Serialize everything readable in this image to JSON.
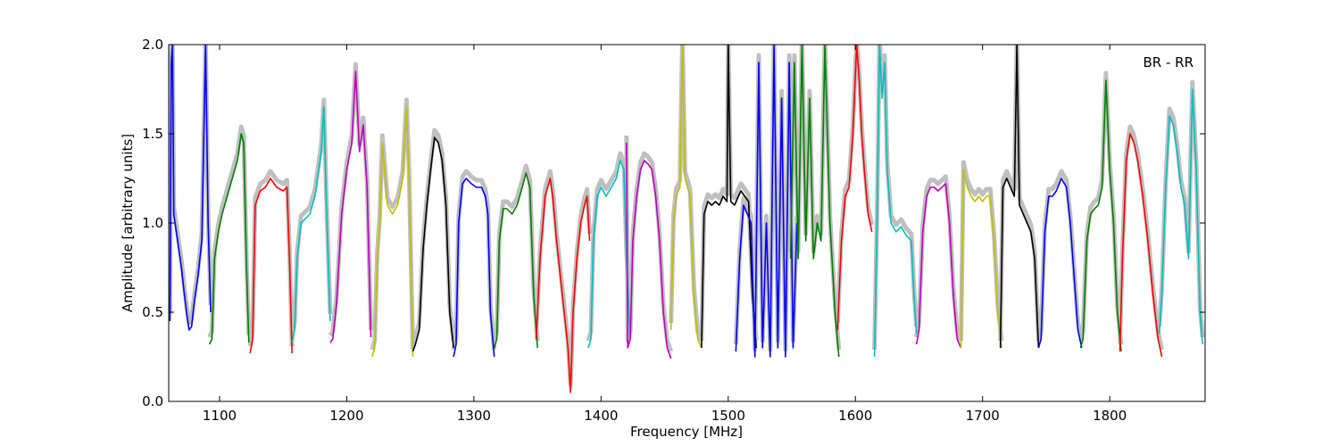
{
  "chart_data": {
    "type": "line",
    "title": "",
    "xlabel": "Frequency [MHz]",
    "ylabel": "Amplitude [arbitrary units]",
    "xlim": [
      1060,
      1875
    ],
    "ylim": [
      0.0,
      2.0
    ],
    "xticks": [
      1100,
      1200,
      1300,
      1400,
      1500,
      1600,
      1700,
      1800
    ],
    "yticks": [
      0.0,
      0.5,
      1.0,
      1.5,
      2.0
    ],
    "xtick_labels": [
      "1100",
      "1200",
      "1300",
      "1400",
      "1500",
      "1600",
      "1700",
      "1800"
    ],
    "ytick_labels": [
      "0.0",
      "0.5",
      "1.0",
      "1.5",
      "2.0"
    ],
    "annotation": "BR - RR",
    "grid": false,
    "background_color": "#bfbfbf",
    "colors": {
      "blue": "#0000ff",
      "green": "#008000",
      "red": "#ff0000",
      "cyan": "#00bfbf",
      "magenta": "#bf00bf",
      "yellow": "#bfbf00",
      "black": "#000000"
    },
    "series": [
      {
        "color": "blue",
        "x": [
          1061,
          1062,
          1063,
          1064,
          1066,
          1068,
          1070,
          1072,
          1074,
          1076,
          1078,
          1080,
          1083,
          1086,
          1089,
          1091,
          1093
        ],
        "y": [
          0.45,
          1.9,
          2.0,
          1.05,
          0.95,
          0.85,
          0.75,
          0.62,
          0.5,
          0.4,
          0.42,
          0.55,
          0.7,
          0.9,
          2.0,
          1.0,
          0.5
        ]
      },
      {
        "color": "green",
        "x": [
          1092,
          1094,
          1096,
          1099,
          1102,
          1106,
          1110,
          1114,
          1117,
          1119,
          1121,
          1123
        ],
        "y": [
          0.32,
          0.35,
          0.8,
          0.95,
          1.05,
          1.15,
          1.25,
          1.35,
          1.5,
          1.45,
          0.8,
          0.33
        ]
      },
      {
        "color": "red",
        "x": [
          1124,
          1126,
          1128,
          1132,
          1136,
          1140,
          1145,
          1150,
          1153,
          1155,
          1157
        ],
        "y": [
          0.27,
          0.35,
          1.1,
          1.18,
          1.2,
          1.25,
          1.2,
          1.18,
          1.2,
          0.8,
          0.27
        ]
      },
      {
        "color": "cyan",
        "x": [
          1157,
          1159,
          1161,
          1164,
          1167,
          1171,
          1175,
          1178,
          1180,
          1182,
          1184,
          1187
        ],
        "y": [
          0.33,
          0.4,
          0.8,
          1.0,
          1.02,
          1.05,
          1.15,
          1.3,
          1.4,
          1.65,
          1.1,
          0.45
        ]
      },
      {
        "color": "magenta",
        "x": [
          1187,
          1189,
          1192,
          1196,
          1200,
          1204,
          1207,
          1210,
          1213,
          1216,
          1219
        ],
        "y": [
          0.33,
          0.35,
          0.55,
          1.05,
          1.3,
          1.45,
          1.85,
          1.4,
          1.55,
          1.2,
          0.36
        ]
      },
      {
        "color": "yellow",
        "x": [
          1220,
          1222,
          1224,
          1226,
          1228,
          1232,
          1236,
          1240,
          1244,
          1247,
          1249,
          1252
        ],
        "y": [
          0.25,
          0.3,
          0.8,
          1.0,
          1.45,
          1.1,
          1.05,
          1.1,
          1.25,
          1.65,
          1.25,
          0.25
        ]
      },
      {
        "color": "black",
        "x": [
          1252,
          1254,
          1257,
          1260,
          1263,
          1266,
          1269,
          1272,
          1275,
          1278,
          1281,
          1284
        ],
        "y": [
          0.28,
          0.32,
          0.4,
          0.85,
          1.1,
          1.3,
          1.48,
          1.45,
          1.35,
          1.1,
          0.5,
          0.3
        ]
      },
      {
        "color": "blue",
        "x": [
          1284,
          1286,
          1288,
          1291,
          1294,
          1298,
          1302,
          1306,
          1309,
          1311,
          1313,
          1316
        ],
        "y": [
          0.25,
          0.32,
          1.0,
          1.22,
          1.25,
          1.22,
          1.2,
          1.2,
          1.15,
          1.05,
          0.5,
          0.25
        ]
      },
      {
        "color": "green",
        "x": [
          1316,
          1318,
          1320,
          1323,
          1326,
          1330,
          1334,
          1338,
          1341,
          1344,
          1347,
          1350
        ],
        "y": [
          0.3,
          0.35,
          0.9,
          1.08,
          1.08,
          1.05,
          1.1,
          1.2,
          1.28,
          1.2,
          0.6,
          0.3
        ]
      },
      {
        "color": "red",
        "x": [
          1349,
          1352,
          1356,
          1360,
          1362,
          1365,
          1368,
          1371,
          1374,
          1376,
          1378,
          1381,
          1384,
          1387,
          1389,
          1391
        ],
        "y": [
          0.35,
          0.8,
          1.15,
          1.25,
          1.15,
          0.9,
          0.7,
          0.5,
          0.3,
          0.05,
          0.5,
          0.8,
          1.0,
          1.1,
          1.15,
          0.9
        ]
      },
      {
        "color": "cyan",
        "x": [
          1390,
          1392,
          1394,
          1397,
          1400,
          1404,
          1408,
          1412,
          1415,
          1418,
          1420,
          1423
        ],
        "y": [
          0.3,
          0.35,
          0.9,
          1.15,
          1.2,
          1.15,
          1.2,
          1.25,
          1.35,
          1.3,
          0.8,
          0.35
        ]
      },
      {
        "color": "magenta",
        "x": [
          1420,
          1421,
          1423,
          1425,
          1428,
          1431,
          1434,
          1437,
          1440,
          1443,
          1446,
          1449,
          1452,
          1455
        ],
        "y": [
          1.45,
          0.3,
          0.35,
          0.9,
          1.15,
          1.3,
          1.35,
          1.33,
          1.3,
          1.15,
          0.9,
          0.5,
          0.3,
          0.24
        ]
      },
      {
        "color": "yellow",
        "x": [
          1455,
          1457,
          1459,
          1462,
          1464,
          1466,
          1468,
          1470,
          1473,
          1476,
          1479
        ],
        "y": [
          0.4,
          1.0,
          1.15,
          1.2,
          2.0,
          1.25,
          1.2,
          1.15,
          0.6,
          0.35,
          0.3
        ]
      },
      {
        "color": "black",
        "x": [
          1479,
          1481,
          1484,
          1487,
          1490,
          1493,
          1496,
          1499,
          1500,
          1502,
          1505,
          1508,
          1510,
          1513,
          1516,
          1519,
          1522
        ],
        "y": [
          0.3,
          1.05,
          1.12,
          1.1,
          1.12,
          1.1,
          1.15,
          1.12,
          2.0,
          1.12,
          1.1,
          1.15,
          1.18,
          1.15,
          1.12,
          0.6,
          0.3
        ]
      },
      {
        "color": "blue",
        "x": [
          1506,
          1509,
          1512,
          1515,
          1518,
          1521,
          1524,
          1527,
          1530,
          1533,
          1536,
          1539,
          1542,
          1545,
          1548,
          1551,
          1554
        ],
        "y": [
          0.28,
          0.8,
          1.1,
          1.05,
          1.0,
          0.25,
          1.9,
          0.3,
          1.0,
          0.25,
          2.0,
          0.3,
          1.7,
          0.25,
          1.9,
          0.3,
          1.0
        ]
      },
      {
        "color": "green",
        "x": [
          1549,
          1552,
          1555,
          1558,
          1561,
          1564,
          1567,
          1570,
          1573,
          1576,
          1580,
          1584,
          1587
        ],
        "y": [
          0.8,
          1.9,
          0.8,
          2.0,
          0.9,
          1.7,
          0.8,
          1.0,
          0.9,
          2.0,
          1.0,
          0.5,
          0.25
        ]
      },
      {
        "color": "red",
        "x": [
          1586,
          1589,
          1592,
          1595,
          1598,
          1601,
          1603,
          1605,
          1607,
          1610,
          1613
        ],
        "y": [
          0.4,
          0.9,
          1.15,
          1.2,
          1.5,
          2.0,
          1.8,
          1.5,
          1.3,
          1.05,
          0.95
        ]
      },
      {
        "color": "cyan",
        "x": [
          1615,
          1617,
          1619,
          1621,
          1623,
          1625,
          1628,
          1632,
          1636,
          1640,
          1644,
          1646,
          1648
        ],
        "y": [
          0.25,
          1.0,
          2.0,
          1.7,
          1.9,
          1.3,
          1.0,
          0.95,
          0.98,
          0.93,
          0.9,
          0.6,
          0.38
        ]
      },
      {
        "color": "magenta",
        "x": [
          1648,
          1650,
          1653,
          1656,
          1659,
          1662,
          1665,
          1668,
          1671,
          1674,
          1677,
          1680,
          1683
        ],
        "y": [
          0.32,
          0.4,
          0.95,
          1.15,
          1.2,
          1.2,
          1.18,
          1.2,
          1.22,
          1.0,
          0.6,
          0.35,
          0.3
        ]
      },
      {
        "color": "yellow",
        "x": [
          1683,
          1685,
          1688,
          1691,
          1694,
          1697,
          1700,
          1703,
          1706,
          1709,
          1712,
          1715
        ],
        "y": [
          0.3,
          1.3,
          1.2,
          1.15,
          1.12,
          1.15,
          1.12,
          1.15,
          1.15,
          0.9,
          0.5,
          0.3
        ]
      },
      {
        "color": "black",
        "x": [
          1714,
          1716,
          1719,
          1722,
          1725,
          1727,
          1729,
          1732,
          1735,
          1738,
          1741,
          1744
        ],
        "y": [
          0.3,
          1.2,
          1.25,
          1.2,
          1.15,
          2.0,
          1.1,
          1.05,
          1.0,
          0.95,
          0.8,
          0.3
        ]
      },
      {
        "color": "blue",
        "x": [
          1744,
          1746,
          1749,
          1752,
          1755,
          1758,
          1762,
          1766,
          1769,
          1772,
          1775,
          1778
        ],
        "y": [
          0.3,
          0.35,
          0.95,
          1.15,
          1.15,
          1.18,
          1.25,
          1.2,
          1.0,
          0.7,
          0.4,
          0.3
        ]
      },
      {
        "color": "green",
        "x": [
          1777,
          1779,
          1782,
          1785,
          1788,
          1791,
          1794,
          1797,
          1800,
          1803,
          1806,
          1809
        ],
        "y": [
          0.3,
          0.35,
          0.9,
          1.05,
          1.08,
          1.1,
          1.2,
          1.8,
          1.3,
          1.0,
          0.5,
          0.28
        ]
      },
      {
        "color": "red",
        "x": [
          1808,
          1810,
          1813,
          1816,
          1819,
          1822,
          1826,
          1830,
          1834,
          1838,
          1841
        ],
        "y": [
          0.28,
          0.8,
          1.35,
          1.5,
          1.45,
          1.35,
          1.15,
          0.9,
          0.6,
          0.35,
          0.25
        ]
      },
      {
        "color": "cyan",
        "x": [
          1839,
          1841,
          1844,
          1847,
          1850,
          1853,
          1856,
          1859,
          1862,
          1865,
          1868,
          1871,
          1873
        ],
        "y": [
          0.38,
          0.6,
          1.2,
          1.6,
          1.55,
          1.4,
          1.2,
          1.1,
          0.8,
          1.75,
          1.3,
          0.5,
          0.32
        ]
      }
    ]
  }
}
